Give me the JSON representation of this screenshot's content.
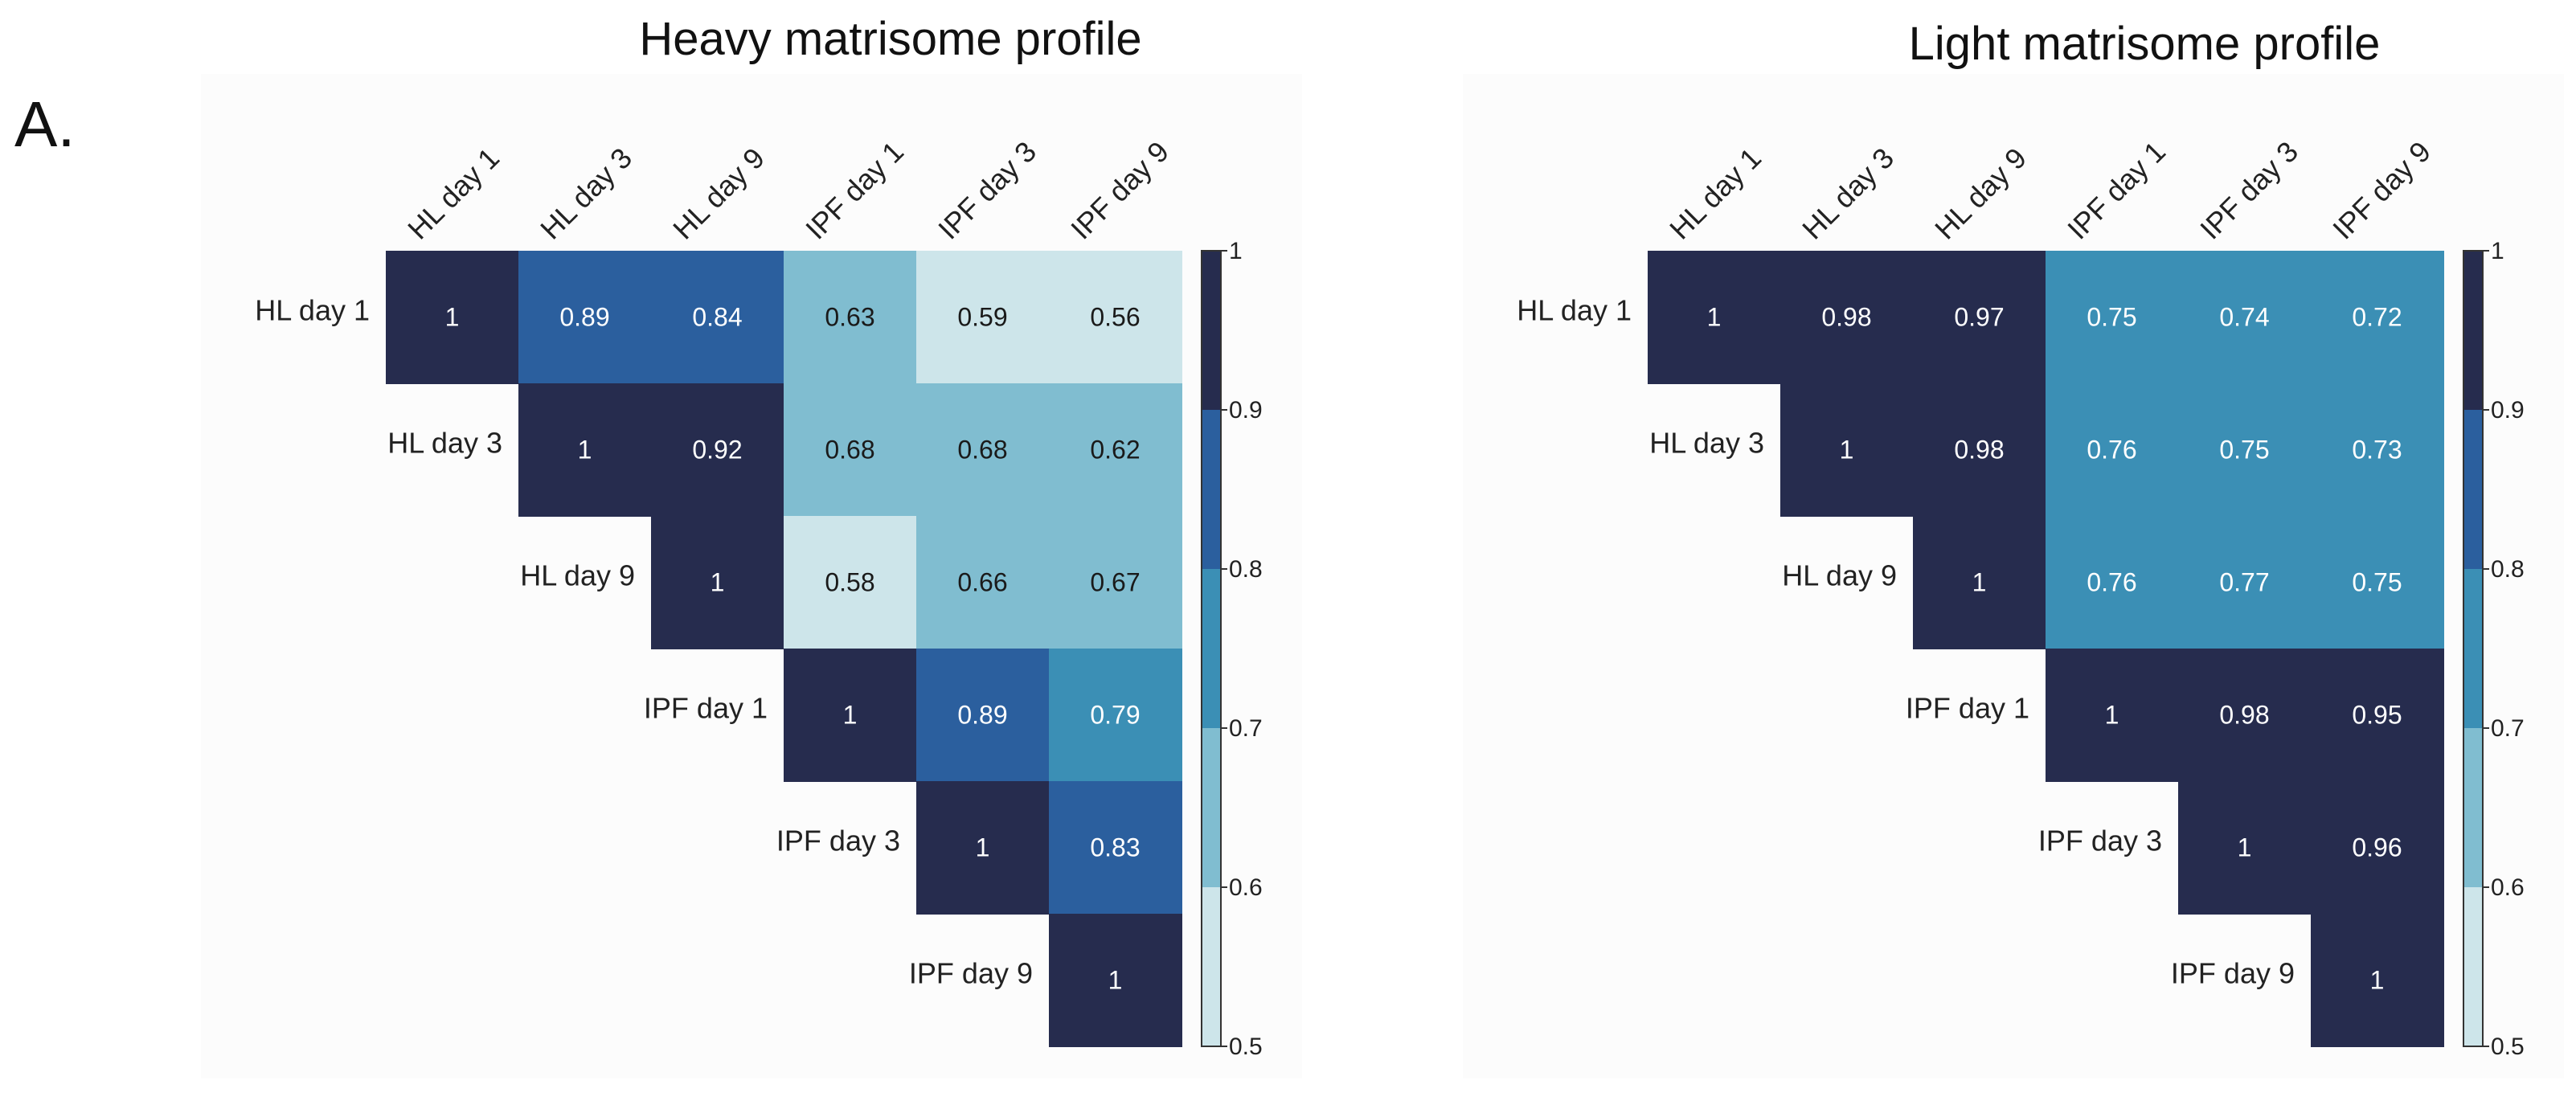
{
  "panel_label": "A.",
  "chart_data": [
    {
      "type": "heatmap",
      "title": "Heavy matrisome profile",
      "labels": [
        "HL day 1",
        "HL day 3",
        "HL day 9",
        "IPF day 1",
        "IPF day 3",
        "IPF day 9"
      ],
      "matrix": [
        [
          "1",
          "0.89",
          "0.84",
          "0.63",
          "0.59",
          "0.56"
        ],
        [
          null,
          "1",
          "0.92",
          "0.68",
          "0.68",
          "0.62"
        ],
        [
          null,
          null,
          "1",
          "0.58",
          "0.66",
          "0.67"
        ],
        [
          null,
          null,
          null,
          "1",
          "0.89",
          "0.79"
        ],
        [
          null,
          null,
          null,
          null,
          "1",
          "0.83"
        ],
        [
          null,
          null,
          null,
          null,
          null,
          "1"
        ]
      ],
      "colorbar": {
        "ticks": [
          "1",
          "0.9",
          "0.8",
          "0.7",
          "0.6",
          "0.5"
        ],
        "range": [
          0.5,
          1
        ]
      }
    },
    {
      "type": "heatmap",
      "title": "Light matrisome profile",
      "labels": [
        "HL day 1",
        "HL day 3",
        "HL day 9",
        "IPF day 1",
        "IPF day 3",
        "IPF day 9"
      ],
      "matrix": [
        [
          "1",
          "0.98",
          "0.97",
          "0.75",
          "0.74",
          "0.72"
        ],
        [
          null,
          "1",
          "0.98",
          "0.76",
          "0.75",
          "0.73"
        ],
        [
          null,
          null,
          "1",
          "0.76",
          "0.77",
          "0.75"
        ],
        [
          null,
          null,
          null,
          "1",
          "0.98",
          "0.95"
        ],
        [
          null,
          null,
          null,
          null,
          "1",
          "0.96"
        ],
        [
          null,
          null,
          null,
          null,
          null,
          "1"
        ]
      ],
      "colorbar": {
        "ticks": [
          "1",
          "0.9",
          "0.8",
          "0.7",
          "0.6",
          "0.5"
        ],
        "range": [
          0.5,
          1
        ]
      }
    }
  ],
  "colors": {
    "bin_0.9_1.0": "#262c4e",
    "bin_0.8_0.9": "#2b5f9e",
    "bin_0.7_0.8": "#3b8fb5",
    "bin_0.6_0.7": "#80bdd0",
    "bin_0.5_0.6": "#cde5ea",
    "dark_text": "#1a1a1a",
    "light_text": "#ffffff",
    "panel_background": "#fcfcfc"
  }
}
